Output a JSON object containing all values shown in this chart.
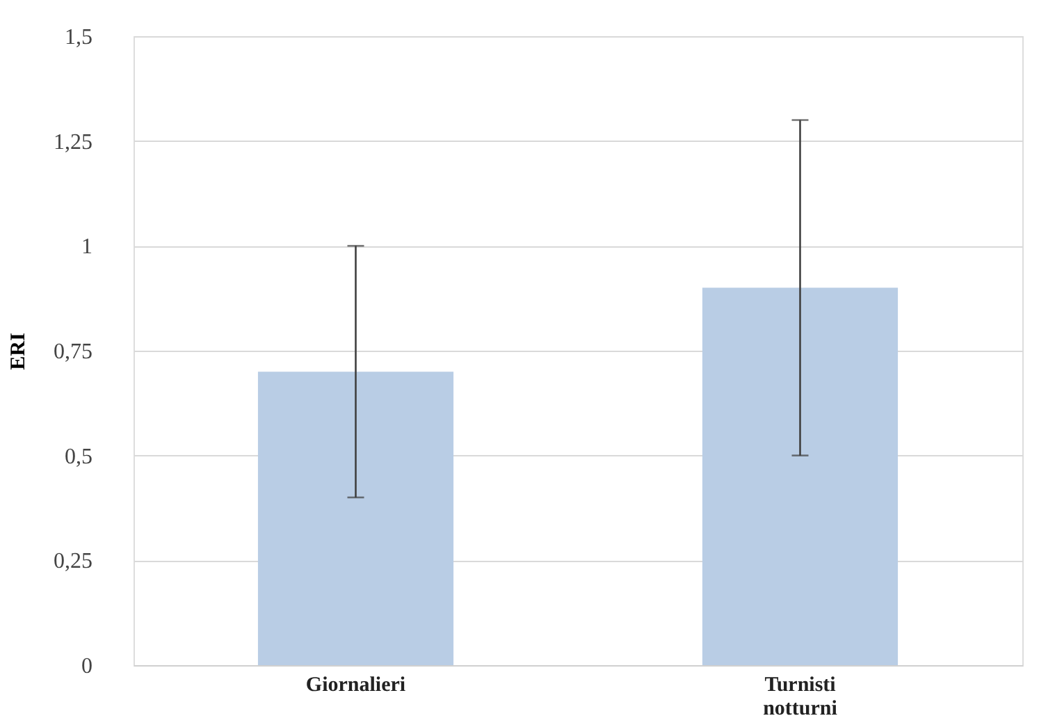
{
  "chart_data": {
    "type": "bar",
    "ylabel": "ERI",
    "categories": [
      "Giornalieri",
      "Turnisti notturni"
    ],
    "values": [
      0.7,
      0.9
    ],
    "errors": [
      0.3,
      0.4
    ],
    "color": "#b9cde5",
    "ylim": [
      0,
      1.5
    ],
    "yticks": [
      0,
      {
        "value": 0.25,
        "label": "0,25"
      },
      {
        "value": 0.5,
        "label": "0,5"
      },
      {
        "value": 0.75,
        "label": "0,75"
      },
      1,
      {
        "value": 1.25,
        "label": "1,25"
      },
      {
        "value": 1.5,
        "label": "1,5"
      }
    ],
    "grid": "y"
  }
}
